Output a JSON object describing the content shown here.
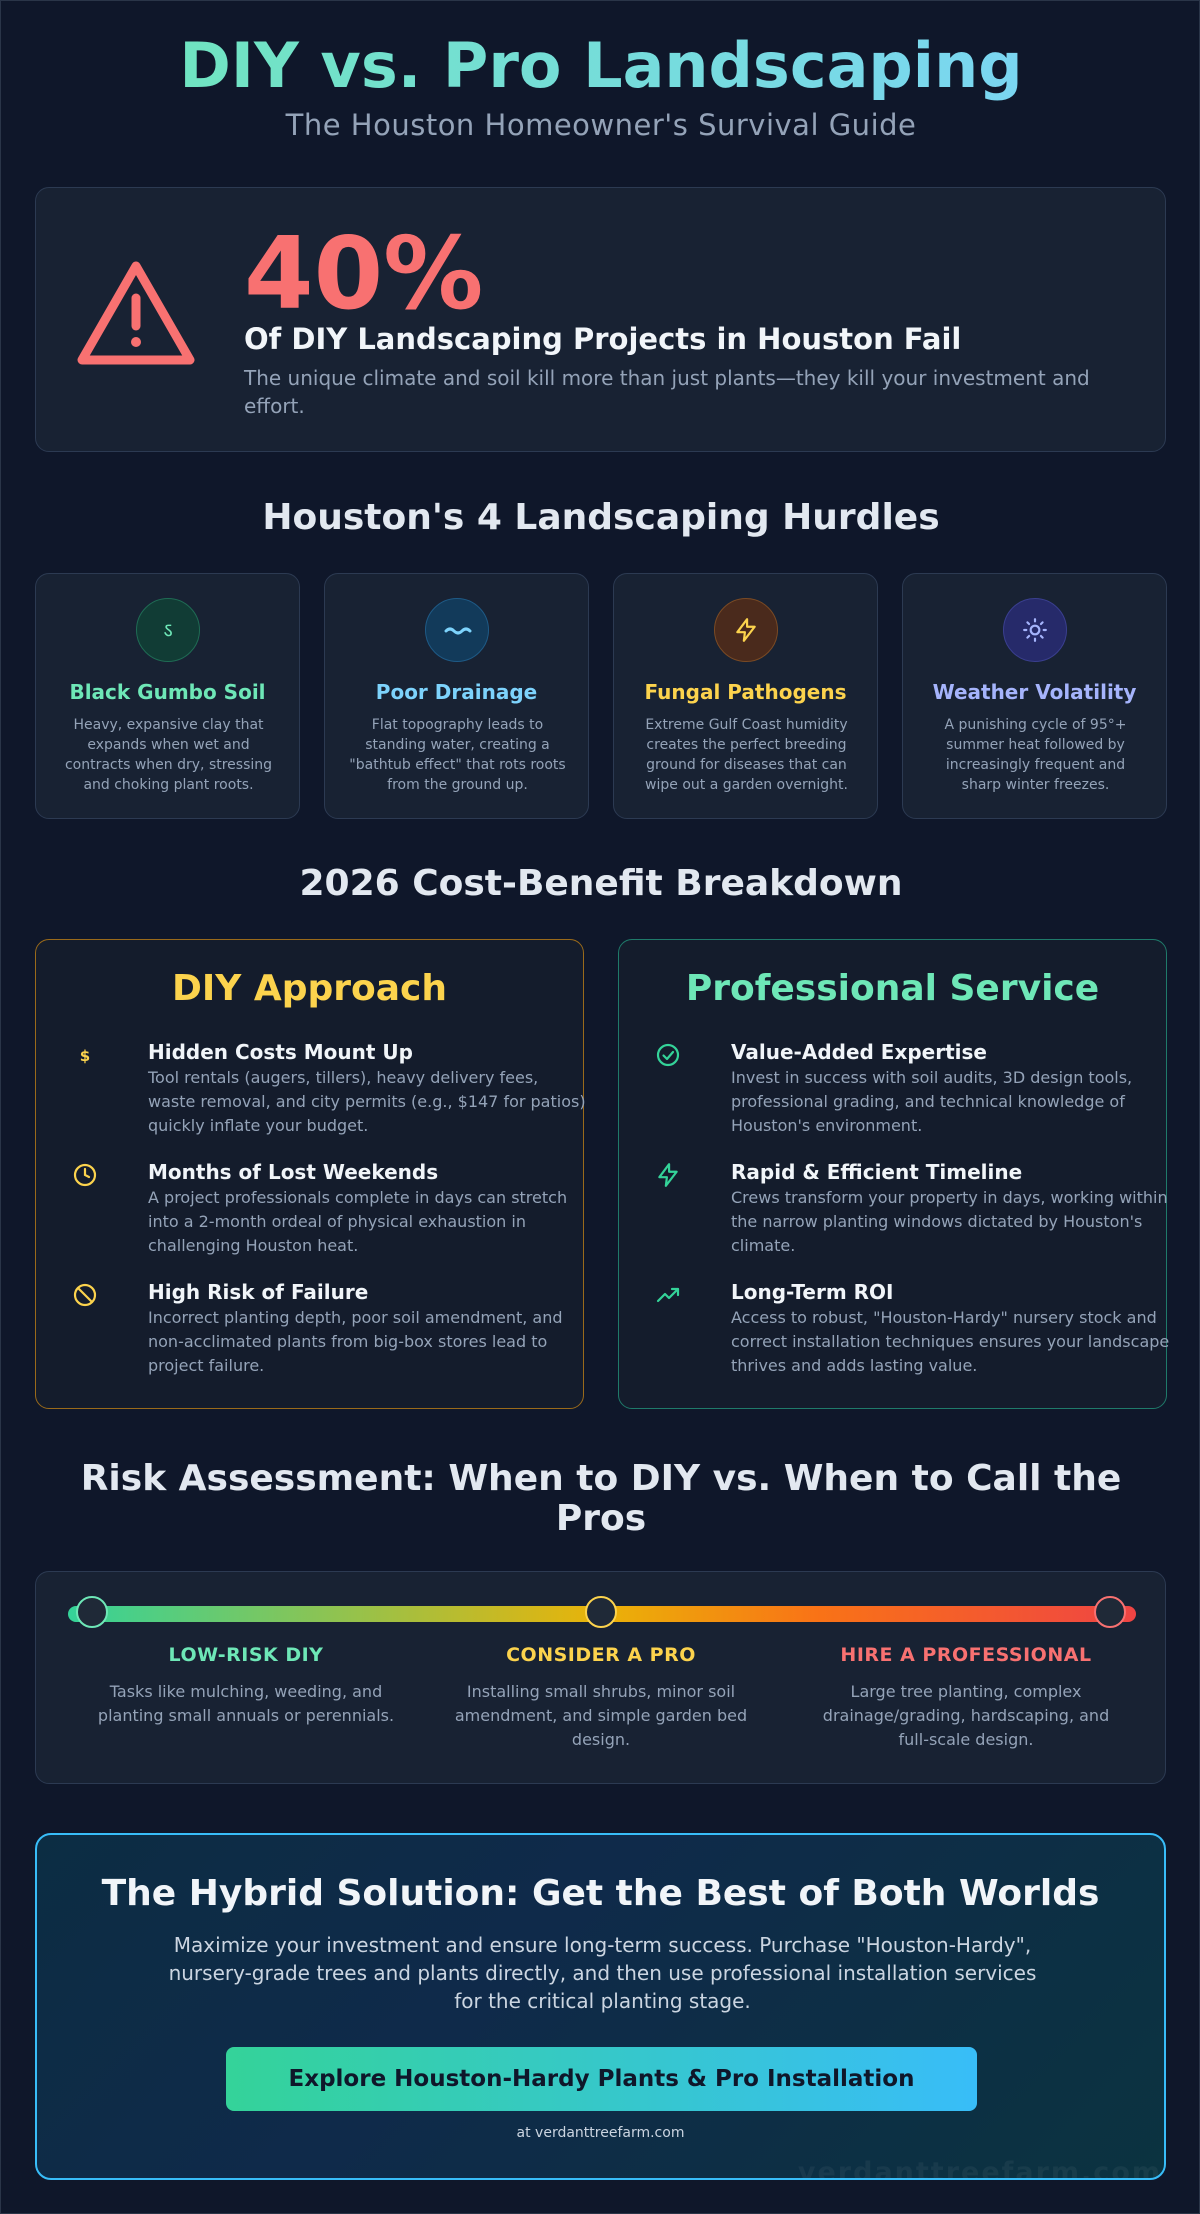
{
  "header": {
    "title": "DIY vs. Pro Landscaping",
    "subtitle": "The Houston Homeowner's Survival Guide"
  },
  "stat": {
    "icon": "warning-triangle-icon",
    "value": "40%",
    "headline": "Of DIY Landscaping Projects in Houston Fail",
    "description": "The unique climate and soil kill more than just plants—they kill your investment and effort."
  },
  "hurdles": {
    "title": "Houston's 4 Landscaping Hurdles",
    "items": [
      {
        "icon": "soil-icon",
        "title": "Black Gumbo Soil",
        "color": "#6ee7b7",
        "description": "Heavy, expansive clay that expands when wet and contracts when dry, stressing and choking plant roots."
      },
      {
        "icon": "water-icon",
        "title": "Poor Drainage",
        "color": "#7dd3fc",
        "description": "Flat topography leads to standing water, creating a \"bathtub effect\" that rots roots from the ground up."
      },
      {
        "icon": "lightning-icon",
        "title": "Fungal Pathogens",
        "color": "#fcd34d",
        "description": "Extreme Gulf Coast humidity creates the perfect breeding ground for diseases that can wipe out a garden overnight."
      },
      {
        "icon": "sun-icon",
        "title": "Weather Volatility",
        "color": "#a5b4fc",
        "description": "A punishing cycle of 95°+ summer heat followed by increasingly frequent and sharp winter freezes."
      }
    ]
  },
  "breakdown": {
    "title": "2026 Cost-Benefit Breakdown",
    "diy": {
      "title": "DIY Approach",
      "color": "#fcd34d",
      "items": [
        {
          "icon": "dollar-icon",
          "title": "Hidden Costs Mount Up",
          "description": "Tool rentals (augers, tillers), heavy delivery fees, waste removal, and city permits (e.g., $147 for patios) quickly inflate your budget."
        },
        {
          "icon": "clock-icon",
          "title": "Months of Lost Weekends",
          "description": "A project professionals complete in days can stretch into a 2-month ordeal of physical exhaustion in challenging Houston heat."
        },
        {
          "icon": "ban-icon",
          "title": "High Risk of Failure",
          "description": "Incorrect planting depth, poor soil amendment, and non-acclimated plants from big-box stores lead to project failure."
        }
      ]
    },
    "pro": {
      "title": "Professional Service",
      "color": "#6ee7b7",
      "items": [
        {
          "icon": "check-circle-icon",
          "title": "Value-Added Expertise",
          "description": "Invest in success with soil audits, 3D design tools, professional grading, and technical knowledge of Houston's environment."
        },
        {
          "icon": "lightning-icon",
          "title": "Rapid & Efficient Timeline",
          "description": "Crews transform your property in days, working within the narrow planting windows dictated by Houston's climate."
        },
        {
          "icon": "trending-up-icon",
          "title": "Long-Term ROI",
          "description": "Access to robust, \"Houston-Hardy\" nursery stock and correct installation techniques ensures your landscape thrives and adds lasting value."
        }
      ]
    }
  },
  "risk": {
    "title": "Risk Assessment: When to DIY vs. When to Call the Pros",
    "levels": [
      {
        "title": "LOW-RISK DIY",
        "color": "#6ee7b7",
        "description": "Tasks like mulching, weeding, and planting small annuals or perennials."
      },
      {
        "title": "CONSIDER A PRO",
        "color": "#fcd34d",
        "description": "Installing small shrubs, minor soil amendment, and simple garden bed design."
      },
      {
        "title": "HIRE A PROFESSIONAL",
        "color": "#f87171",
        "description": "Large tree planting, complex drainage/grading, hardscaping, and full-scale design."
      }
    ]
  },
  "cta": {
    "title": "The Hybrid Solution: Get the Best of Both Worlds",
    "description": "Maximize your investment and ensure long-term success. Purchase \"Houston-Hardy\", nursery-grade trees and plants directly, and then use professional installation services for the critical planting stage.",
    "button": "Explore Houston-Hardy Plants & Pro Installation",
    "url": "at verdanttreefarm.com",
    "watermark": "verdanttreefarm.com"
  }
}
